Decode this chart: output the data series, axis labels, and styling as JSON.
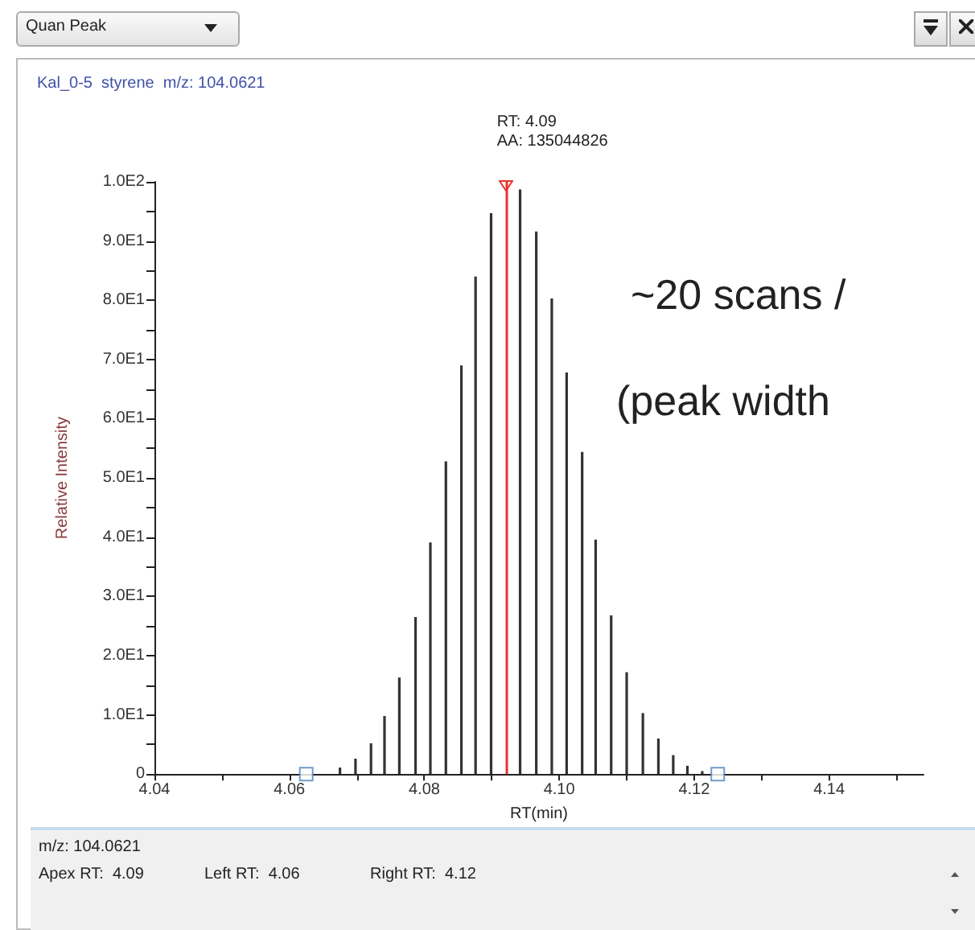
{
  "chart_data": {
    "type": "bar",
    "title": "Kal_0-5  styrene  m/z: 104.0621",
    "xlabel": "RT(min)",
    "ylabel": "Relative Intensity",
    "annotations": [
      "Quan Peak",
      "~20 scans /",
      "(peak width",
      "m/z: 104.0621",
      "Apex RT:  4.09",
      "Left RT:  4.06",
      "Right RT:  4.12"
    ],
    "xlim": [
      4.04,
      4.154
    ],
    "xticks": [
      4.04,
      {
        "value": 4.05,
        "label": null
      },
      4.06,
      {
        "value": 4.07,
        "label": null
      },
      4.08,
      {
        "value": 4.09,
        "label": null
      },
      {
        "value": 4.1,
        "label": "4.10"
      },
      {
        "value": 4.11,
        "label": null
      },
      4.12,
      {
        "value": 4.13,
        "label": null
      },
      4.14,
      {
        "value": 4.15,
        "label": null
      }
    ],
    "ylim": [
      0,
      100
    ],
    "yticks": [
      0,
      {
        "value": 5,
        "label": null
      },
      {
        "value": 10,
        "label": "1.0E1"
      },
      {
        "value": 15,
        "label": null
      },
      {
        "value": 20,
        "label": "2.0E1"
      },
      {
        "value": 25,
        "label": null
      },
      {
        "value": 30,
        "label": "3.0E1"
      },
      {
        "value": 35,
        "label": null
      },
      {
        "value": 40,
        "label": "4.0E1"
      },
      {
        "value": 45,
        "label": null
      },
      {
        "value": 50,
        "label": "5.0E1"
      },
      {
        "value": 55,
        "label": null
      },
      {
        "value": 60,
        "label": "6.0E1"
      },
      {
        "value": 65,
        "label": null
      },
      {
        "value": 70,
        "label": "7.0E1"
      },
      {
        "value": 75,
        "label": null
      },
      {
        "value": 80,
        "label": "8.0E1"
      },
      {
        "value": 85,
        "label": null
      },
      {
        "value": 90,
        "label": "9.0E1"
      },
      {
        "value": 95,
        "label": null
      },
      {
        "value": 100,
        "label": "1.0E2"
      }
    ],
    "series": [
      {
        "color": "#333333",
        "x": [
          4.0675,
          4.0698,
          4.0721,
          4.0741,
          4.0763,
          4.0787,
          4.0809,
          4.0832,
          4.0855,
          4.0876,
          4.0899,
          4.0922,
          4.0942,
          4.0966,
          4.0989,
          4.1011,
          4.1034,
          4.1054,
          4.1077,
          4.11,
          4.1124,
          4.1147,
          4.1169,
          4.119,
          4.1212
        ],
        "values": [
          1.1,
          2.6,
          5.2,
          9.8,
          16.3,
          26.5,
          39.1,
          52.8,
          69.0,
          84.0,
          94.7,
          null,
          98.7,
          91.6,
          80.3,
          67.8,
          54.4,
          39.6,
          26.8,
          17.2,
          10.3,
          6.0,
          3.2,
          1.4,
          0.5
        ]
      },
      {
        "type": "scatter",
        "color": "#4f81bd",
        "marker": "square",
        "x": [
          4.0625,
          4.1235
        ],
        "values": [
          0,
          0
        ]
      }
    ],
    "ref_lines": [
      {
        "axis": "x",
        "value": 4.0922,
        "label": "RT: 4.09\nAA: 135044826",
        "color": "#e8332e"
      }
    ],
    "grid": false
  }
}
